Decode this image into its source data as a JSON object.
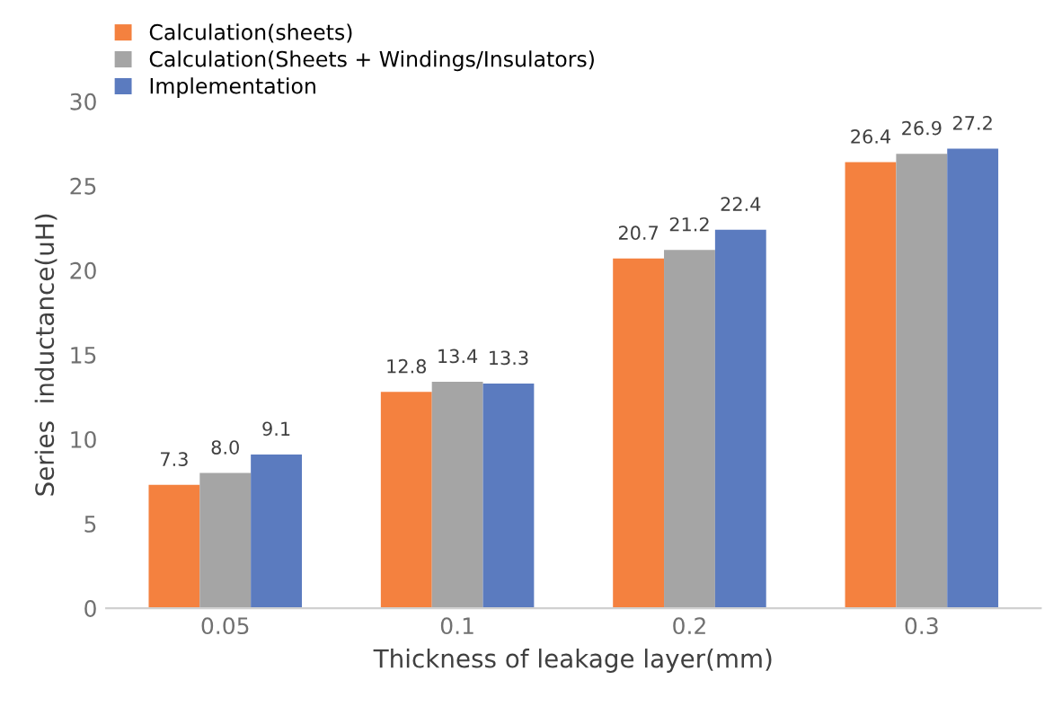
{
  "chart_data": {
    "type": "bar",
    "xlabel": "Thickness of leakage layer(mm)",
    "ylabel": "Series  inductance(uH)",
    "categories": [
      "0.05",
      "0.1",
      "0.2",
      "0.3"
    ],
    "series": [
      {
        "name": "Calculation(sheets)",
        "color": "#f4813f",
        "values": [
          7.3,
          12.8,
          20.7,
          26.4
        ],
        "value_labels": [
          "7.3",
          "12.8",
          "20.7",
          "26.4"
        ]
      },
      {
        "name": "Calculation(Sheets + Windings/Insulators)",
        "color": "#a5a5a5",
        "values": [
          8.0,
          13.4,
          21.2,
          26.9
        ],
        "value_labels": [
          "8.0",
          "13.4",
          "21.2",
          "26.9"
        ]
      },
      {
        "name": "Implementation",
        "color": "#5b7bbf",
        "values": [
          9.1,
          13.3,
          22.4,
          27.2
        ],
        "value_labels": [
          "9.1",
          "13.3",
          "22.4",
          "27.2"
        ]
      }
    ],
    "ylim": [
      0,
      30
    ],
    "yticks": [
      0,
      5,
      10,
      15,
      20,
      25,
      30
    ],
    "grid": false,
    "legend": "top left"
  }
}
